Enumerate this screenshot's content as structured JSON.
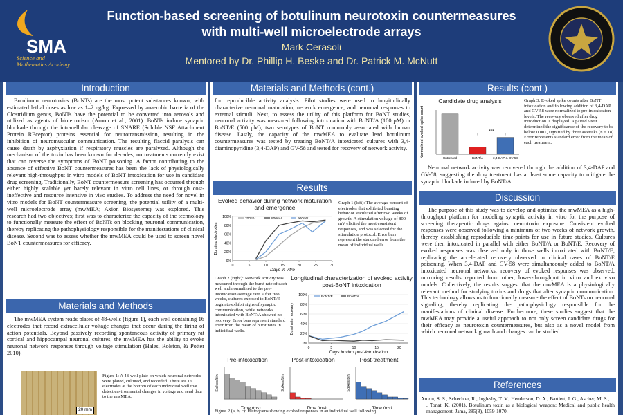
{
  "header": {
    "title": "Function-based screening of botulinum neurotoxin countermeasures with multi-well microelectrode arrays",
    "author": "Mark Cerasoli",
    "mentors": "Mentored by Dr. Phillip H. Beske and Dr. Patrick M. McNutt",
    "logo_short": "SMA",
    "logo_long": "Science and Mathematics Academy"
  },
  "introduction": {
    "heading": "Introduction",
    "text": "Botulinum neurotoxins (BoNTs) are the most potent substances known, with estimated lethal doses as low as 1–2 ng/kg. Expressed by anaerobic bacteria of the Clostridium genus, BoNTs have the potential to be converted into aerosols and utilized as agents of bioterrorism (Arnon et al., 2001). BoNTs induce synaptic blockade through the intracellular cleavage of SNARE (Soluble NSF Attachment Protein REceptor) proteins essential for neurotransmission, resulting in the inhibition of neuromuscular communication. The resulting flaccid paralysis can cause death by asphyxiation if respiratory muscles are paralyzed. Although the mechanism of the toxin has been known for decades, no treatments currently exist that can reverse the symptoms of BoNT poisoning. A factor contributing to the absence of effective BoNT countermeasures has been the lack of physiologically relevant high-throughput in vitro models of BoNT intoxication for use in candidate drug screening. Traditionally, BoNT countermeasure screening has occurred through either highly scalable yet barely relevant in vitro cell lines, or through cost-ineffective and resource intensive in vivo studies. To address the need for novel in vitro models for BoNT countermeasure screening, the potential utility of a multi-well microelectrode array (mwMEA; Axion Biosystems) was explored. This research had two objectives; first was to characterize the capacity of the technology to functionally measure the effect of BoNTs on blocking neuronal communication, thereby replicating the pathophysiology responsible for the manifestations of clinical disease. Second was to assess whether the mwMEA could be used to screen novel BoNT countermeasures for efficacy."
  },
  "methods": {
    "heading": "Materials and Methods",
    "text": "The mwMEA system reads plates of 48-wells (figure 1), each well containing 16 electrodes that record extracellular voltage changes that occur during the firing of action potentials. Beyond passively recording spontaneous activity of primary rat cortical and hippocampal neuronal cultures, the mwMEA has the ability to evoke neuronal network responses through voltage stimulation (Hales, Rolston, & Potter 2010).",
    "figure_caption": "Figure 1: A 48-well plate on which neuronal networks were plated, cultured, and recorded. There are 16 electrodes at the bottom of each individual well that detect environmental changes in voltage and send data to the mwMEA.",
    "scale_label": "20 mm"
  },
  "methods_cont": {
    "heading": "Materials and Methods (cont.)",
    "text": "for reproducible activity analysis. Pilot studies were used to longitudinally characterize neuronal maturation, network emergence, and neuronal responses to external stimuli. Next, to assess the utility of this platform for BoNT studies, neuronal activity was measured following intoxication with BoNT/A (100 pM) or BoNT/E (500 pM), two serotypes of BoNT commonly associated with human disease. Lastly, the capacity of the mwMEA to evaluate lead botulinum countermeasures was tested by treating BoNT/A intoxicated cultures with 3,4-diaminopyridine (3,4-DAP) and GV-58 and tested for recovery of network activity."
  },
  "results": {
    "heading": "Results",
    "graph1": {
      "type": "line",
      "title": "Evoked behavior during network maturation and emergence",
      "xlabel": "Days in vitro",
      "ylabel": "Bursting electrodes",
      "x": [
        7,
        10,
        14,
        17,
        21,
        24,
        28
      ],
      "xlim": [
        0,
        30
      ],
      "xticks": [
        0,
        5,
        10,
        15,
        20,
        25,
        30
      ],
      "ylim": [
        0,
        100
      ],
      "yticks": [
        {
          "value": 0,
          "label": "0%"
        },
        {
          "value": 20,
          "label": "20%"
        },
        {
          "value": 40,
          "label": "40%"
        },
        {
          "value": 60,
          "label": "60%"
        },
        {
          "value": 80,
          "label": "80%"
        },
        {
          "value": 100,
          "label": "100%"
        }
      ],
      "series": [
        {
          "name": "700mV",
          "color": "#a6a6a6",
          "values": [
            2,
            10,
            35,
            55,
            75,
            85,
            90
          ]
        },
        {
          "name": "800mV",
          "color": "#404040",
          "values": [
            5,
            45,
            80,
            85,
            90,
            88,
            92
          ]
        },
        {
          "name": "900mV",
          "color": "#6f9fd8",
          "values": [
            3,
            20,
            60,
            70,
            85,
            65,
            90
          ]
        }
      ]
    },
    "graph1_caption": "Graph 1 (left): The average percent of electrodes that exhibited bursting behavior stabilized after two weeks of growth. A stimulation voltage of 800 mV elicited the most consistent responses, and was selected for the stimulation protocol. Error bars represent the standard error from the mean of individual wells.",
    "graph2": {
      "type": "line",
      "title": "Longitudinal characterization of evoked activity post-BoNT intoxication",
      "xlabel": "Days in vitro post-intoxication",
      "ylabel": "Burst rate recovery",
      "x": [
        0,
        3,
        5,
        7,
        10,
        12,
        14,
        17,
        21
      ],
      "xlim": [
        0,
        22
      ],
      "xticks": [
        0,
        5,
        10,
        15,
        20
      ],
      "ylim": [
        0,
        100
      ],
      "yticks": [
        {
          "value": 0,
          "label": "0%"
        },
        {
          "value": 20,
          "label": "20%"
        },
        {
          "value": 40,
          "label": "40%"
        },
        {
          "value": 60,
          "label": "60%"
        },
        {
          "value": 80,
          "label": "80%"
        },
        {
          "value": 100,
          "label": "100%"
        }
      ],
      "series": [
        {
          "name": "BoNT/E",
          "color": "#6f9fd8",
          "values": [
            15,
            8,
            10,
            12,
            18,
            25,
            35,
            45,
            65
          ]
        },
        {
          "name": "BoNT/A",
          "color": "#404040",
          "values": [
            15,
            5,
            6,
            5,
            4,
            6,
            5,
            7,
            6
          ]
        }
      ]
    },
    "graph2_caption": "Graph 2 (right): Network activity was measured through the burst rate of each well and normalized to the pre-intoxication average rate. After two weeks, cultures exposed to BoNT/E began to exhibit signs of synaptic communication, while networks intoxicated with BoNT/A showed no recovery. Error bars represent standard error from the mean of burst rates in individual wells.",
    "histograms": [
      {
        "type": "histogram",
        "title": "Pre-intoxication",
        "xlabel": "Time (ms)",
        "ylabel": "Spikes/bin",
        "color": "#a6a6a6",
        "bins": [
          0,
          20,
          40,
          60,
          80,
          100,
          120,
          140,
          160,
          180,
          200
        ],
        "values": [
          12,
          10,
          9,
          8,
          6,
          5,
          4,
          3,
          2,
          1
        ],
        "ylim": [
          0,
          15
        ]
      },
      {
        "type": "histogram",
        "title": "Post-intoxication",
        "xlabel": "Time (ms)",
        "ylabel": "Spikes/bin",
        "color": "#e03030",
        "bins": [
          0,
          20,
          40,
          60,
          80,
          100,
          120,
          140,
          160,
          180,
          200
        ],
        "values": [
          3,
          1,
          0.5,
          0.3,
          0,
          0,
          0,
          0,
          0,
          0
        ],
        "ylim": [
          0,
          15
        ]
      },
      {
        "type": "histogram",
        "title": "Post-treatment",
        "xlabel": "Time (ms)",
        "ylabel": "Spikes/bin",
        "color": "#3f6fb5",
        "bins": [
          0,
          20,
          40,
          60,
          80,
          100,
          120,
          140,
          160,
          180,
          200
        ],
        "values": [
          8,
          6,
          5,
          4,
          3,
          2,
          1,
          1,
          0.5,
          0.3
        ],
        "ylim": [
          0,
          15
        ]
      }
    ],
    "figure2_caption": "Figure 2 (a, b, c): Histograms showing evoked responses in an individual well following"
  },
  "results_cont": {
    "heading": "Results (cont.)",
    "graph3": {
      "type": "bar",
      "title": "Candidate drug analysis",
      "ylabel": "Normalized evoked spike count",
      "categories": [
        "Untreated",
        "BoNT/A",
        "3,4-DAP & GV-58"
      ],
      "values": [
        100,
        18,
        42
      ],
      "colors": [
        "#a6a6a6",
        "#e02020",
        "#3f6fb5"
      ],
      "ylim": [
        0,
        110
      ],
      "annotation": "***"
    },
    "graph3_caption": "Graph 3: Evoked spike counts after BoNT intoxication and following addition of 3,4-DAP and GV-58 were normalized to pre-intoxication levels. The recovery observed after drug introduction is displayed. A paired t-test determined the significance of the recovery to be below 0.001, signified by three asterisks (n = 18). Error represents standard error from the mean of each treatment.",
    "text": "Neuronal network activity was recovered through the addition of 3,4-DAP and GV-58, suggesting the drug treatment has at least some capacity to mitigate the synaptic blockade induced by BoNT/A."
  },
  "discussion": {
    "heading": "Discussion",
    "text": "The purpose of this study was to develop and optimize the mwMEA as a high-throughput platform for modeling synaptic activity in vitro for the purpose of screening therapeutic drugs against neurotoxin exposure. Consistent evoked responses were observed following a minimum of two weeks of network growth, thereby establishing reproducible time-points for use in future studies. Cultures were then intoxicated in parallel with either BoNT/A or BoNT/E. Recovery of evoked responses was observed only in those wells intoxicated with BoNT/E, replicating the accelerated recovery observed in clinical cases of BoNT/E poisoning. When 3,4-DAP and GV-58 were simultaneously added to BoNT/A intoxicated neuronal networks, recovery of evoked responses was observed, mirroring results reported from other, lower-throughput in vitro and ex vivo models. Collectively, the results suggest that the mwMEA is a physiologically relevant method for studying toxins and drugs that alter synaptic communication. This technology allows us to functionally measure the effect of BoNTs on neuronal signaling, thereby replicating the pathophysiology responsible for the manifestations of clinical disease. Furthermore, these studies suggest that the mwMEA may provide a useful approach to not only screen candidate drugs for their efficacy as neurotoxin countermeasures, but also as a novel model from which neuronal network growth and changes can be studied."
  },
  "references": {
    "heading": "References",
    "text": "Arnon, S. S., Schechter, R., Inglesby, T. V., Henderson, D. A., Bartlett, J. G., Ascher, M. S., . . . Tonat, K. (2001). Botulinum toxin as a biological weapon: Medical and public health management. Jama, 285(8), 1059-1070."
  }
}
